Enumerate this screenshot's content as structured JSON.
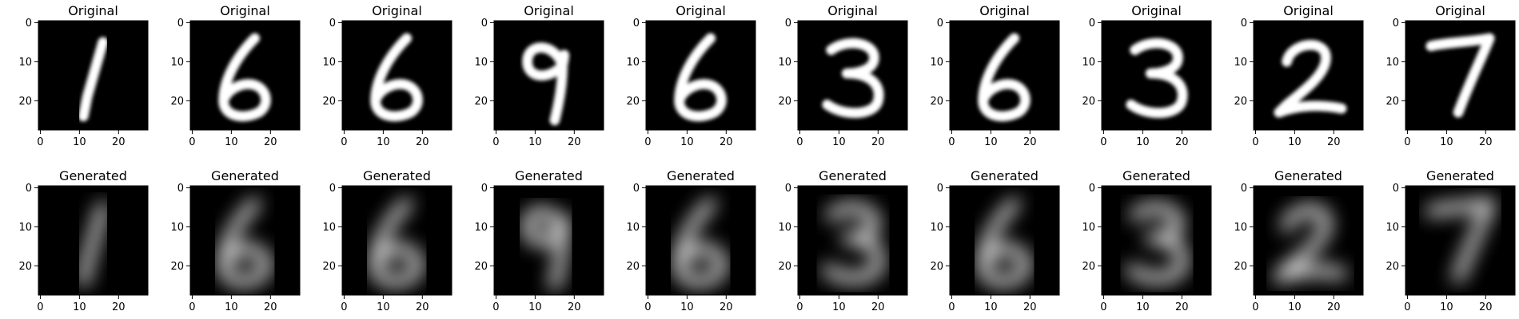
{
  "chart_data": [
    {
      "type": "image-grid",
      "rows": [
        {
          "name": "original",
          "panels": [
            {
              "title": "Original",
              "digit": "1"
            },
            {
              "title": "Original",
              "digit": "6"
            },
            {
              "title": "Original",
              "digit": "6"
            },
            {
              "title": "Original",
              "digit": "9"
            },
            {
              "title": "Original",
              "digit": "6"
            },
            {
              "title": "Original",
              "digit": "3"
            },
            {
              "title": "Original",
              "digit": "6"
            },
            {
              "title": "Original",
              "digit": "3"
            },
            {
              "title": "Original",
              "digit": "2"
            },
            {
              "title": "Original",
              "digit": "7"
            }
          ]
        },
        {
          "name": "generated",
          "panels": [
            {
              "title": "Generated",
              "digit": "1"
            },
            {
              "title": "Generated",
              "digit": "6"
            },
            {
              "title": "Generated",
              "digit": "6"
            },
            {
              "title": "Generated",
              "digit": "9"
            },
            {
              "title": "Generated",
              "digit": "6"
            },
            {
              "title": "Generated",
              "digit": "3"
            },
            {
              "title": "Generated",
              "digit": "6"
            },
            {
              "title": "Generated",
              "digit": "3"
            },
            {
              "title": "Generated",
              "digit": "2"
            },
            {
              "title": "Generated",
              "digit": "7"
            }
          ]
        }
      ],
      "xlim": [
        -0.5,
        27.5
      ],
      "ylim": [
        27.5,
        -0.5
      ],
      "x_ticks": [
        0,
        10,
        20
      ],
      "y_ticks": [
        0,
        10,
        20
      ],
      "x_tick_labels": [
        "0",
        "10",
        "20"
      ],
      "y_tick_labels": [
        "0",
        "10",
        "20"
      ],
      "colormap": "gray",
      "background_color": "#000000",
      "foreground_color": "#ffffff"
    }
  ]
}
